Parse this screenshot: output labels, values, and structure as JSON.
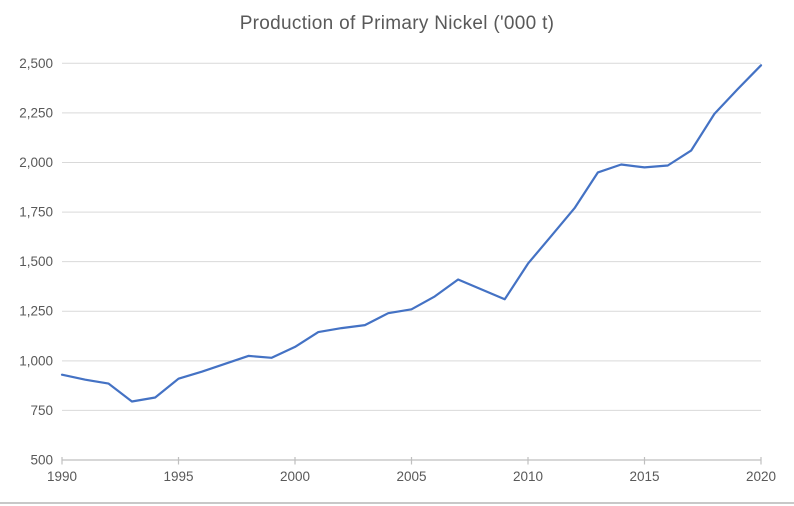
{
  "chart_data": {
    "type": "line",
    "title": "Production of Primary Nickel ('000 t)",
    "x": [
      1990,
      1991,
      1992,
      1993,
      1994,
      1995,
      1996,
      1997,
      1998,
      1999,
      2000,
      2001,
      2002,
      2003,
      2004,
      2005,
      2006,
      2007,
      2008,
      2009,
      2010,
      2011,
      2012,
      2013,
      2014,
      2015,
      2016,
      2017,
      2018,
      2019,
      2020
    ],
    "values": [
      930,
      905,
      885,
      795,
      815,
      910,
      945,
      985,
      1025,
      1015,
      1070,
      1145,
      1165,
      1180,
      1240,
      1260,
      1325,
      1410,
      1360,
      1310,
      1490,
      1630,
      1770,
      1950,
      1990,
      1975,
      1985,
      2060,
      2245,
      2370,
      2490
    ],
    "xlabel": "",
    "ylabel": "",
    "xlim": [
      1990,
      2020
    ],
    "ylim": [
      500,
      2500
    ],
    "y_step": 250,
    "x_tick_step": 5,
    "x_tick_labels": [
      "1990",
      "1995",
      "2000",
      "2005",
      "2010",
      "2015",
      "2020"
    ],
    "y_tick_labels": [
      "500",
      "750",
      "1,000",
      "1,250",
      "1,500",
      "1,750",
      "2,000",
      "2,250",
      "2,500"
    ],
    "grid": true,
    "legend": "none",
    "colors": {
      "line": "#4472C4",
      "title_text": "#595959",
      "tick_text": "#595959",
      "gridline": "#D9D9D9",
      "axis_line": "#BFBFBF"
    }
  }
}
